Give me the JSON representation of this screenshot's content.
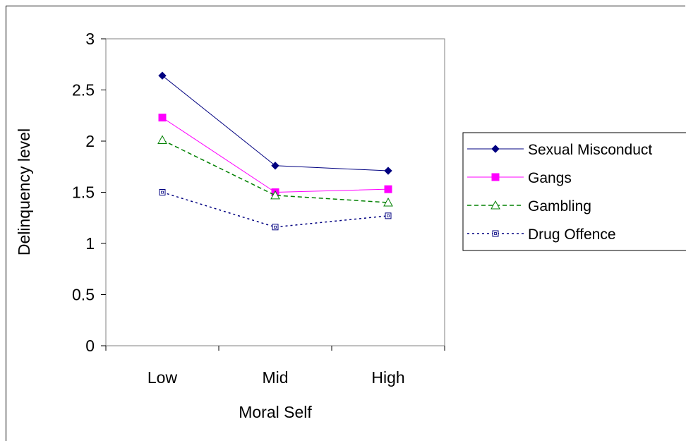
{
  "chart_data": {
    "type": "line",
    "title": "",
    "xlabel": "Moral Self",
    "ylabel": "Delinquency level",
    "categories": [
      "Low",
      "Mid",
      "High"
    ],
    "ylim": [
      0,
      3
    ],
    "yticks": [
      "0",
      "0.5",
      "1",
      "1.5",
      "2",
      "2.5",
      "3"
    ],
    "grid": false,
    "legend_position": "right",
    "series": [
      {
        "name": "Sexual Misconduct",
        "values": [
          2.64,
          1.76,
          1.71
        ],
        "color": "#000080",
        "line": "solid",
        "marker": "diamond-filled"
      },
      {
        "name": "Gangs",
        "values": [
          2.23,
          1.5,
          1.53
        ],
        "color": "#ff00ff",
        "line": "solid",
        "marker": "square-filled"
      },
      {
        "name": "Gambling",
        "values": [
          2.01,
          1.47,
          1.4
        ],
        "color": "#008000",
        "line": "dashed",
        "marker": "triangle-open"
      },
      {
        "name": "Drug Offence",
        "values": [
          1.5,
          1.16,
          1.27
        ],
        "color": "#000080",
        "line": "dotted",
        "marker": "square-open"
      }
    ]
  }
}
